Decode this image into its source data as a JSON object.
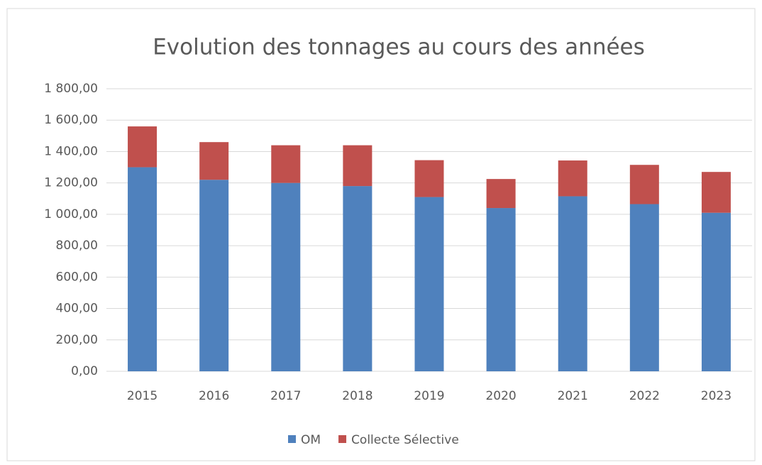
{
  "chart_data": {
    "type": "stacked_bar",
    "title": "Evolution des tonnages au cours des années",
    "categories": [
      "2015",
      "2016",
      "2017",
      "2018",
      "2019",
      "2020",
      "2021",
      "2022",
      "2023"
    ],
    "series": [
      {
        "name": "OM",
        "color": "#4f81bd",
        "values": [
          1300,
          1220,
          1200,
          1180,
          1110,
          1040,
          1115,
          1065,
          1010
        ]
      },
      {
        "name": "Collecte Sélective",
        "color": "#c0504d",
        "values": [
          260,
          240,
          240,
          260,
          235,
          185,
          228,
          250,
          260
        ]
      }
    ],
    "ylim": [
      0,
      1800
    ],
    "yticks": [
      {
        "value": 0,
        "label": "0,00"
      },
      {
        "value": 200,
        "label": "200,00"
      },
      {
        "value": 400,
        "label": "400,00"
      },
      {
        "value": 600,
        "label": "600,00"
      },
      {
        "value": 800,
        "label": "800,00"
      },
      {
        "value": 1000,
        "label": "1 000,00"
      },
      {
        "value": 1200,
        "label": "1 200,00"
      },
      {
        "value": 1400,
        "label": "1 400,00"
      },
      {
        "value": 1600,
        "label": "1 600,00"
      },
      {
        "value": 1800,
        "label": "1 800,00"
      }
    ],
    "grid": true,
    "legend": "bottom"
  }
}
